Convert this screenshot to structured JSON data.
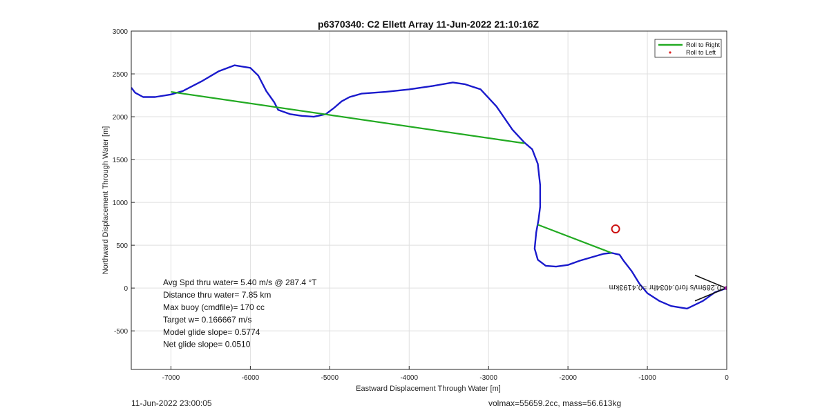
{
  "footer": {
    "timestamp": "11-Jun-2022 23:00:05",
    "volmax_mass": "volmax=55659.2cc, mass=56.613kg"
  },
  "chart_data": {
    "type": "line",
    "title": "p6370340: C2 Ellett Array 11-Jun-2022 21:10:16Z",
    "xlabel": "Eastward Displacement Through Water [m]",
    "ylabel": "Northward Displacement Through Water [m]",
    "xlim": [
      -7500,
      0
    ],
    "ylim": [
      -950,
      3000
    ],
    "xticks": [
      -7000,
      -6000,
      -5000,
      -4000,
      -3000,
      -2000,
      -1000,
      0
    ],
    "yticks": [
      -500,
      0,
      500,
      1000,
      1500,
      2000,
      2500,
      3000
    ],
    "grid": true,
    "legend_position": "top-right",
    "legend": [
      {
        "label": "Roll to Right",
        "color": "#22aa22",
        "marker": "line"
      },
      {
        "label": "Roll to Left",
        "color": "#dd2222",
        "marker": "dot"
      }
    ],
    "series": [
      {
        "type": "line",
        "color": "#1a1acc",
        "points": [
          [
            0,
            0
          ],
          [
            -150,
            -50
          ],
          [
            -300,
            -150
          ],
          [
            -500,
            -240
          ],
          [
            -700,
            -210
          ],
          [
            -850,
            -150
          ],
          [
            -1000,
            -60
          ],
          [
            -1100,
            50
          ],
          [
            -1200,
            200
          ],
          [
            -1300,
            320
          ],
          [
            -1350,
            390
          ],
          [
            -1450,
            410
          ],
          [
            -1550,
            400
          ],
          [
            -1700,
            360
          ],
          [
            -1850,
            320
          ],
          [
            -2000,
            270
          ],
          [
            -2150,
            250
          ],
          [
            -2280,
            260
          ],
          [
            -2380,
            330
          ],
          [
            -2420,
            460
          ],
          [
            -2400,
            650
          ],
          [
            -2370,
            800
          ],
          [
            -2350,
            950
          ],
          [
            -2350,
            1200
          ],
          [
            -2380,
            1450
          ],
          [
            -2450,
            1620
          ],
          [
            -2550,
            1700
          ],
          [
            -2700,
            1850
          ],
          [
            -2900,
            2120
          ],
          [
            -3100,
            2320
          ],
          [
            -3300,
            2380
          ],
          [
            -3450,
            2400
          ],
          [
            -3700,
            2360
          ],
          [
            -4000,
            2320
          ],
          [
            -4300,
            2290
          ],
          [
            -4600,
            2270
          ],
          [
            -4750,
            2230
          ],
          [
            -4850,
            2180
          ],
          [
            -4950,
            2100
          ],
          [
            -5050,
            2030
          ],
          [
            -5200,
            2000
          ],
          [
            -5350,
            2010
          ],
          [
            -5500,
            2030
          ],
          [
            -5650,
            2080
          ],
          [
            -5700,
            2170
          ],
          [
            -5800,
            2300
          ],
          [
            -5900,
            2480
          ],
          [
            -6000,
            2570
          ],
          [
            -6200,
            2600
          ],
          [
            -6400,
            2530
          ],
          [
            -6600,
            2420
          ],
          [
            -6850,
            2300
          ],
          [
            -7000,
            2260
          ],
          [
            -7200,
            2230
          ],
          [
            -7350,
            2230
          ],
          [
            -7450,
            2280
          ],
          [
            -7500,
            2340
          ]
        ]
      },
      {
        "type": "segments",
        "color": "#22aa22",
        "name": "Roll to Right",
        "segments": [
          [
            [
              -7000,
              2290
            ],
            [
              -2550,
              1690
            ]
          ],
          [
            [
              -2380,
              740
            ],
            [
              -1450,
              410
            ]
          ]
        ]
      }
    ],
    "markers": [
      {
        "type": "circle",
        "x": -1400,
        "y": 690,
        "color": "#cc1111"
      },
      {
        "type": "dot",
        "x": 0,
        "y": 0,
        "color": "#aa11aa"
      }
    ],
    "arrows": [
      {
        "from": [
          -400,
          150
        ],
        "to": [
          -10,
          0
        ],
        "color": "#111111"
      },
      {
        "from": [
          -400,
          -150
        ],
        "to": [
          -10,
          0
        ],
        "color": "#111111"
      }
    ],
    "annotations": [
      {
        "text": "Avg Spd thru water=  5.40 m/s @ 287.4 °T",
        "x": -7100,
        "y": 35
      },
      {
        "text": "Distance thru water=  7.85 km",
        "x": -7100,
        "y": -110
      },
      {
        "text": "Max buoy (cmdfile)= 170 cc",
        "x": -7100,
        "y": -255
      },
      {
        "text": "Target w= 0.166667 m/s",
        "x": -7100,
        "y": -400
      },
      {
        "text": "Model glide slope= 0.5774",
        "x": -7100,
        "y": -545
      },
      {
        "text": "Net glide slope= 0.0510",
        "x": -7100,
        "y": -690
      }
    ],
    "mirrored_label": {
      "text": "0.289m/s for0.4034hr =0.4193km",
      "x": 0,
      "y": 0,
      "color": "#222222"
    }
  }
}
